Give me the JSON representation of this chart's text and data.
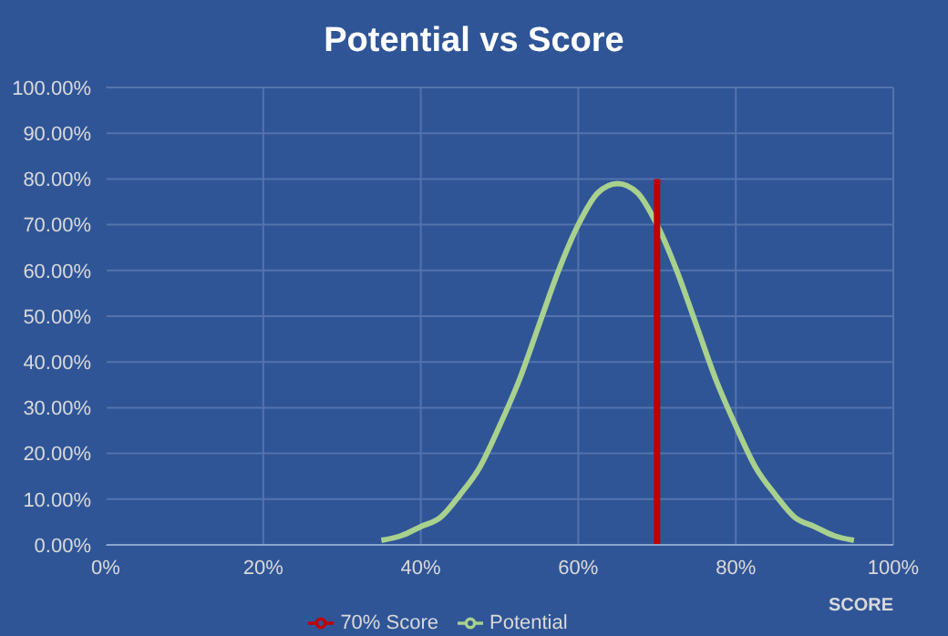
{
  "chart_data": {
    "type": "line",
    "title": "Potential vs Score",
    "xlabel": "SCORE",
    "x": [
      35,
      37.5,
      40,
      42.5,
      45,
      47.5,
      50,
      52.5,
      55,
      57.5,
      60,
      62.5,
      65,
      67.5,
      70,
      72.5,
      75,
      77.5,
      80,
      82.5,
      85,
      87.5,
      90,
      92.5,
      95
    ],
    "series": [
      {
        "name": "Potential",
        "color": "#a9d18e",
        "values": [
          1,
          2,
          4,
          6,
          11,
          17,
          26,
          36,
          48,
          60,
          70,
          77,
          79,
          77,
          70,
          60,
          48,
          36,
          26,
          17,
          11,
          6,
          4,
          2,
          1
        ]
      },
      {
        "name": "70% Score",
        "color": "#c00000",
        "x": [
          70,
          70
        ],
        "values": [
          0,
          80
        ]
      }
    ],
    "xlim": [
      0,
      100
    ],
    "xticks": [
      {
        "value": 0,
        "label": "0%"
      },
      {
        "value": 20,
        "label": "20%"
      },
      {
        "value": 40,
        "label": "40%"
      },
      {
        "value": 60,
        "label": "60%"
      },
      {
        "value": 80,
        "label": "80%"
      },
      {
        "value": 100,
        "label": "100%"
      }
    ],
    "ylim": [
      0,
      100
    ],
    "yticks": [
      {
        "value": 0,
        "label": "0.00%"
      },
      {
        "value": 10,
        "label": "10.00%"
      },
      {
        "value": 20,
        "label": "20.00%"
      },
      {
        "value": 30,
        "label": "30.00%"
      },
      {
        "value": 40,
        "label": "40.00%"
      },
      {
        "value": 50,
        "label": "50.00%"
      },
      {
        "value": 60,
        "label": "60.00%"
      },
      {
        "value": 70,
        "label": "70.00%"
      },
      {
        "value": 80,
        "label": "80.00%"
      },
      {
        "value": 90,
        "label": "90.00%"
      },
      {
        "value": 100,
        "label": "100.00%"
      }
    ],
    "grid": true,
    "legend": "bottom",
    "marker": "none"
  }
}
